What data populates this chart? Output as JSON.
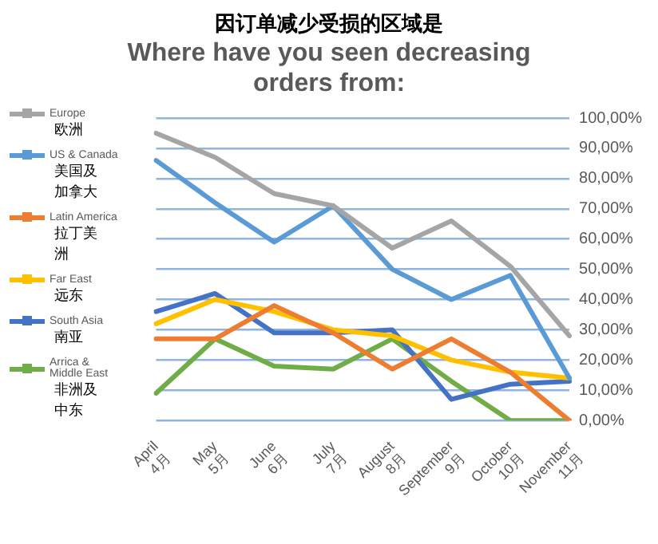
{
  "chart_data": {
    "type": "line",
    "title": "因订单减少受损的区域是",
    "subtitle": "Where have you seen decreasing orders from:",
    "categories": [
      "April\n4月",
      "May\n5月",
      "June\n6月",
      "July\n7月",
      "August\n8月",
      "September\n9月",
      "October\n10月",
      "November\n11月"
    ],
    "series": [
      {
        "name": "Europe\n欧洲",
        "color": "#a5a5a5",
        "values": [
          95,
          87,
          75,
          71,
          57,
          66,
          51,
          28
        ]
      },
      {
        "name": "US & Canada\n美国及加拿大",
        "color": "#5b9bd5",
        "values": [
          86,
          72,
          59,
          71,
          50,
          40,
          48,
          14
        ]
      },
      {
        "name": "Latin America\n拉丁美洲",
        "color": "#ed7d31",
        "values": [
          27,
          27,
          38,
          29,
          17,
          27,
          16,
          0
        ]
      },
      {
        "name": "Far East\n远东",
        "color": "#ffc000",
        "values": [
          32,
          40,
          36,
          30,
          28,
          20,
          16,
          14
        ]
      },
      {
        "name": "South Asia\n南亚",
        "color": "#4472c4",
        "values": [
          36,
          42,
          29,
          29,
          30,
          7,
          12,
          13
        ]
      },
      {
        "name": "Arrica &\nMiddle East\n非洲及中东",
        "color": "#70ad47",
        "values": [
          9,
          27,
          18,
          17,
          27,
          13,
          0,
          0
        ]
      }
    ],
    "ylim": [
      0,
      100
    ],
    "yticks": [
      {
        "value": 0,
        "label": "0,00%"
      },
      {
        "value": 10,
        "label": "10,00%"
      },
      {
        "value": 20,
        "label": "20,00%"
      },
      {
        "value": 30,
        "label": "30,00%"
      },
      {
        "value": 40,
        "label": "40,00%"
      },
      {
        "value": 50,
        "label": "50,00%"
      },
      {
        "value": 60,
        "label": "60,00%"
      },
      {
        "value": 70,
        "label": "70,00%"
      },
      {
        "value": 80,
        "label": "80,00%"
      },
      {
        "value": 90,
        "label": "90,00%"
      },
      {
        "value": 100,
        "label": "100,00%"
      }
    ],
    "grid": "y",
    "legend": "left"
  }
}
